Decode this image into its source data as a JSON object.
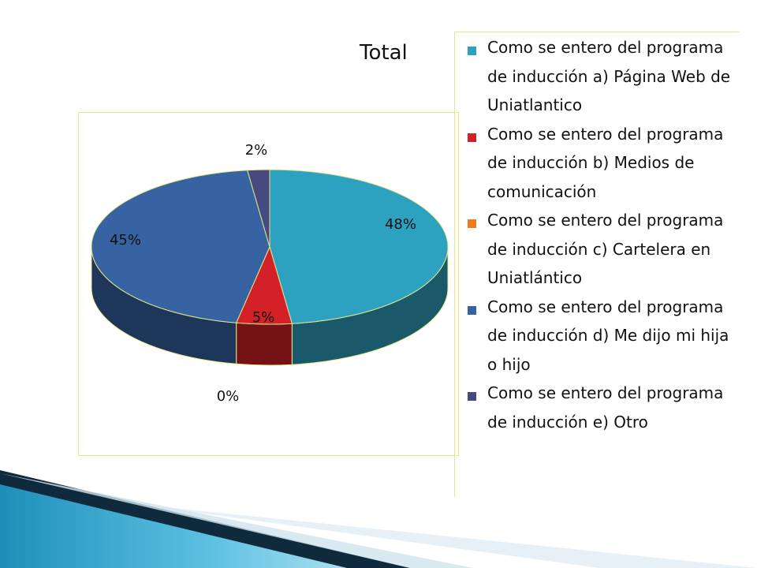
{
  "chart_data": {
    "type": "pie",
    "title": "Total",
    "categories": [
      "Como se entero del programa de inducción a) Página Web de Uniatlantico",
      "Como se entero del programa de inducción b) Medios de comunicación",
      "Como se entero del programa de inducción c) Cartelera en Uniatlántico",
      "Como se entero del programa de inducción d) Me dijo mi hija o hijo",
      "Como se entero del programa de inducción e) Otro"
    ],
    "values": [
      48,
      5,
      0,
      45,
      2
    ],
    "value_labels": [
      "48%",
      "5%",
      "0%",
      "45%",
      "2%"
    ],
    "colors": [
      "#2da2c0",
      "#d42027",
      "#ef7b1f",
      "#3763a2",
      "#464a7e"
    ],
    "legend_position": "right",
    "style": "3d"
  }
}
